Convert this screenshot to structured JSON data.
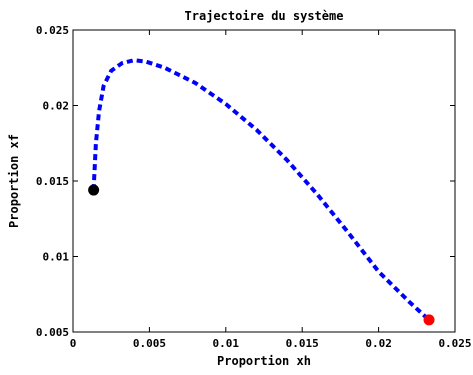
{
  "chart_data": {
    "type": "line",
    "title": "Trajectoire du système",
    "xlabel": "Proportion xh",
    "ylabel": "Proportion xf",
    "xlim": [
      0,
      0.025
    ],
    "ylim": [
      0.005,
      0.025
    ],
    "x_ticks": [
      "0",
      "0.005",
      "0.01",
      "0.015",
      "0.02",
      "0.025"
    ],
    "y_ticks": [
      "0.005",
      "0.01",
      "0.015",
      "0.02",
      "0.025"
    ],
    "x_tick_values": [
      0,
      0.005,
      0.01,
      0.015,
      0.02,
      0.025
    ],
    "y_tick_values": [
      0.005,
      0.01,
      0.015,
      0.02,
      0.025
    ],
    "grid": false,
    "series": [
      {
        "style": "dashed",
        "color": "#0000ff",
        "x": [
          0.00135,
          0.0014,
          0.0015,
          0.0017,
          0.002,
          0.0025,
          0.0032,
          0.004,
          0.0048,
          0.006,
          0.008,
          0.01,
          0.012,
          0.014,
          0.016,
          0.018,
          0.02,
          0.022,
          0.0233
        ],
        "y": [
          0.0144,
          0.0155,
          0.0175,
          0.0196,
          0.0213,
          0.0223,
          0.0228,
          0.023,
          0.0229,
          0.0225,
          0.0215,
          0.0201,
          0.0184,
          0.0164,
          0.0141,
          0.0116,
          0.009,
          0.007,
          0.0058
        ]
      }
    ],
    "markers": [
      {
        "name": "start",
        "x": 0.00135,
        "y": 0.0144,
        "color": "#000000"
      },
      {
        "name": "end",
        "x": 0.0233,
        "y": 0.0058,
        "color": "#ff0000"
      }
    ]
  }
}
